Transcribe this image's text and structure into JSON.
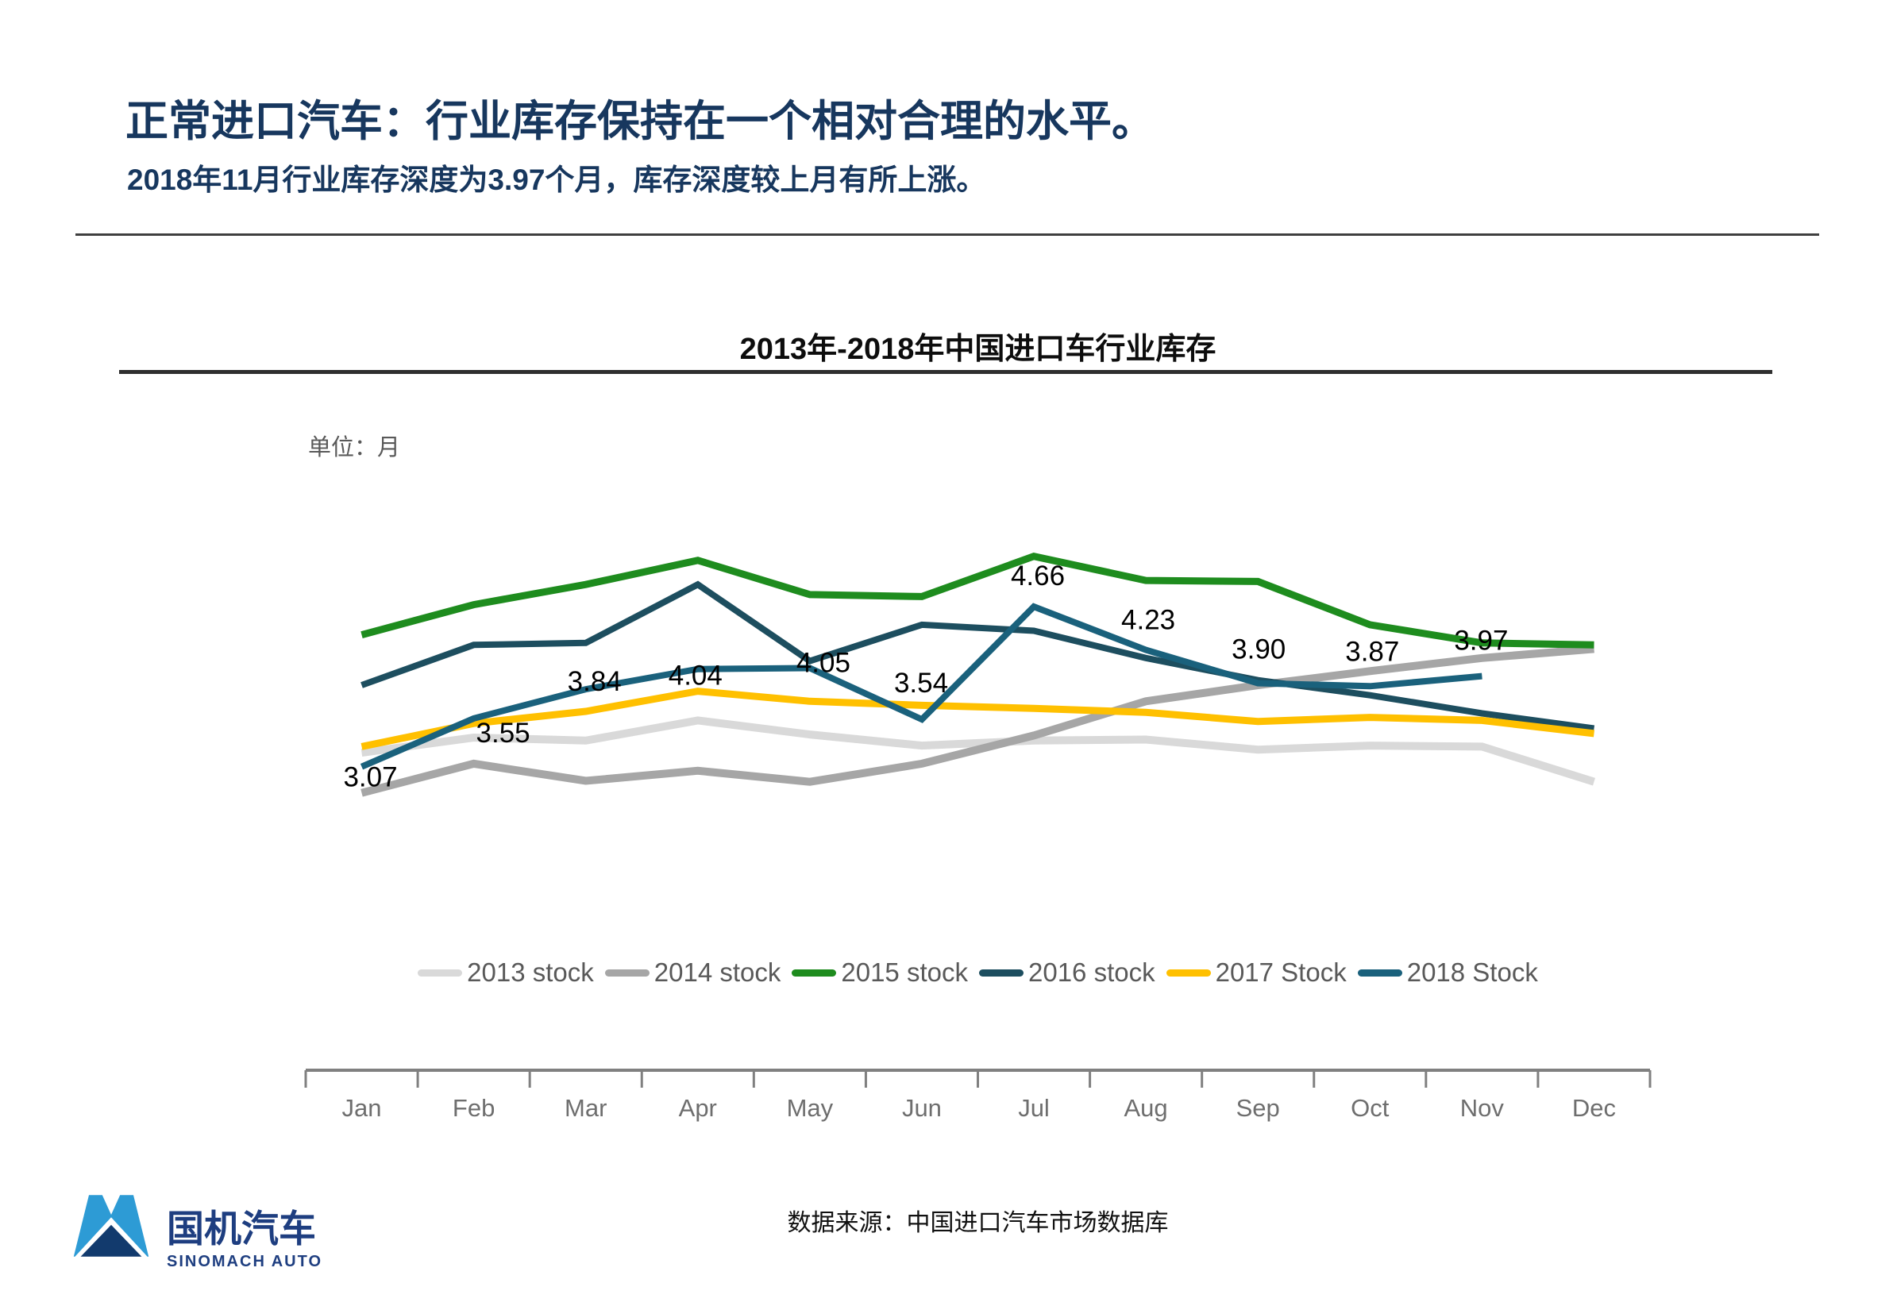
{
  "header": {
    "title": "正常进口汽车：行业库存保持在一个相对合理的水平。",
    "subtitle": "2018年11月行业库存深度为3.97个月，库存深度较上月有所上涨。"
  },
  "chart_data": {
    "type": "line",
    "title": "2013年-2018年中国进口车行业库存",
    "unit_label": "单位：月",
    "xlabel": "",
    "ylabel": "月",
    "ylim": [
      0,
      5.6
    ],
    "grid": false,
    "legend_position": "bottom",
    "categories": [
      "Jan",
      "Feb",
      "Mar",
      "Apr",
      "May",
      "Jun",
      "Jul",
      "Aug",
      "Sep",
      "Oct",
      "Nov",
      "Dec"
    ],
    "series": [
      {
        "name": "2013 stock",
        "color": "#D9D9D9",
        "values": [
          3.21,
          3.36,
          3.33,
          3.53,
          3.39,
          3.28,
          3.33,
          3.34,
          3.24,
          3.28,
          3.27,
          2.92
        ]
      },
      {
        "name": "2014 stock",
        "color": "#A6A6A6",
        "values": [
          2.81,
          3.1,
          2.93,
          3.03,
          2.92,
          3.1,
          3.38,
          3.72,
          3.88,
          4.02,
          4.15,
          4.24
        ]
      },
      {
        "name": "2015 stock",
        "color": "#1E8C1E",
        "values": [
          4.38,
          4.68,
          4.88,
          5.12,
          4.78,
          4.76,
          5.16,
          4.92,
          4.91,
          4.48,
          4.3,
          4.28
        ]
      },
      {
        "name": "2016 stock",
        "color": "#1D4E5F",
        "values": [
          3.88,
          4.28,
          4.3,
          4.88,
          4.12,
          4.48,
          4.42,
          4.15,
          3.93,
          3.78,
          3.6,
          3.45
        ]
      },
      {
        "name": "2017 Stock",
        "color": "#FFC000",
        "values": [
          3.27,
          3.5,
          3.62,
          3.82,
          3.72,
          3.68,
          3.65,
          3.61,
          3.52,
          3.56,
          3.53,
          3.4
        ]
      },
      {
        "name": "2018 Stock",
        "color": "#1A617C",
        "labeled": true,
        "values": [
          3.07,
          3.55,
          3.84,
          4.04,
          4.05,
          3.54,
          4.66,
          4.23,
          3.9,
          3.87,
          3.97
        ]
      }
    ]
  },
  "footer": {
    "source": "数据来源：中国进口汽车市场数据库",
    "logo": {
      "name": "国机汽车",
      "subname": "SINOMACH AUTO"
    }
  }
}
